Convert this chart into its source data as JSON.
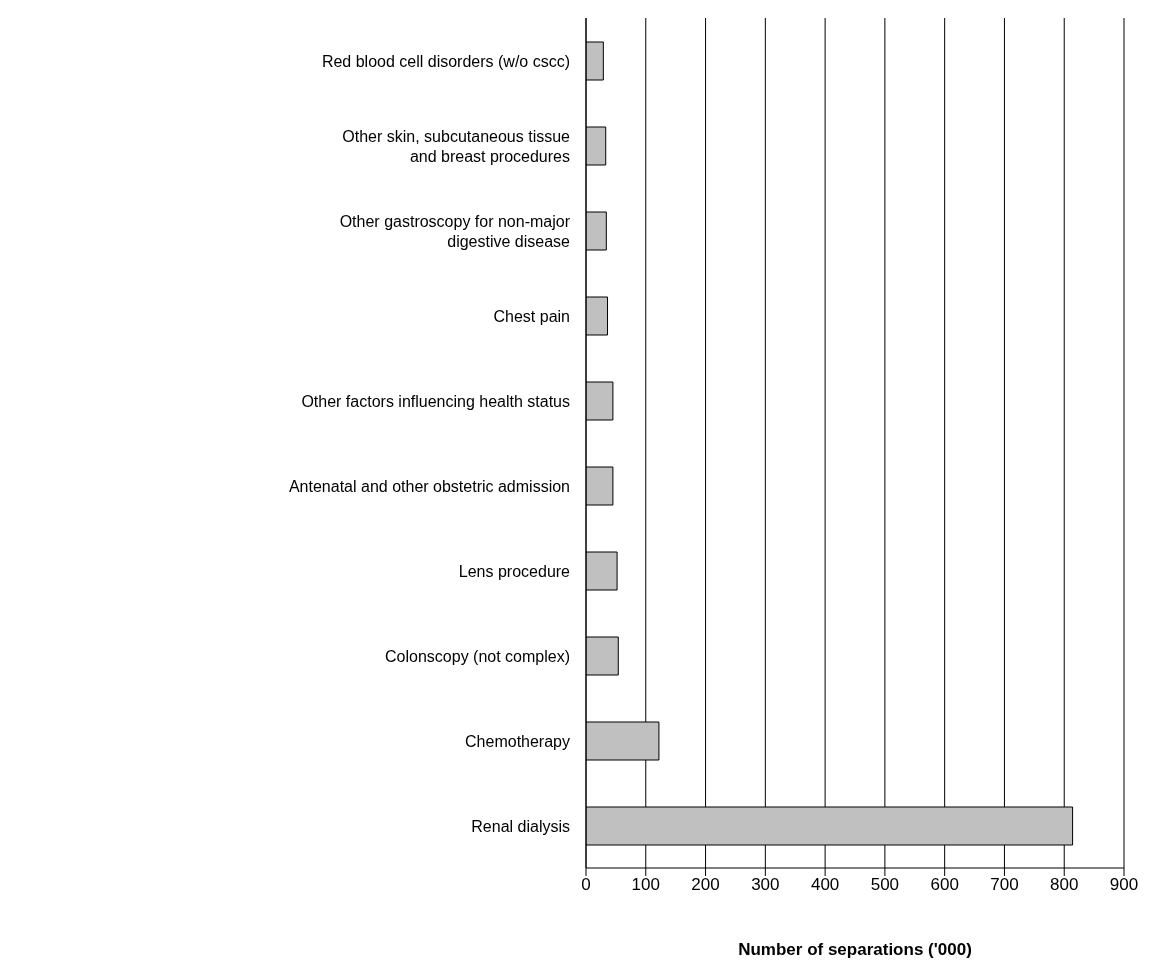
{
  "chart_data": {
    "type": "bar",
    "orientation": "horizontal",
    "xlabel": "Number of separations ('000)",
    "categories": [
      "Red blood cell disorders (w/o cscc)",
      "Other skin, subcutaneous tissue\nand breast procedures",
      "Other gastroscopy for non-major\ndigestive disease",
      "Chest pain",
      "Other factors influencing health status",
      "Antenatal and other obstetric admission",
      "Lens procedure",
      "Colonscopy (not complex)",
      "Chemotherapy",
      "Renal dialysis"
    ],
    "values": [
      29,
      33,
      34,
      36,
      45,
      45,
      52,
      54,
      122,
      814
    ],
    "color": "#c0c0c0",
    "xlim": [
      0,
      900
    ],
    "xticks": [
      0,
      100,
      200,
      300,
      400,
      500,
      600,
      700,
      800,
      900
    ],
    "grid": "x",
    "legend": false
  }
}
